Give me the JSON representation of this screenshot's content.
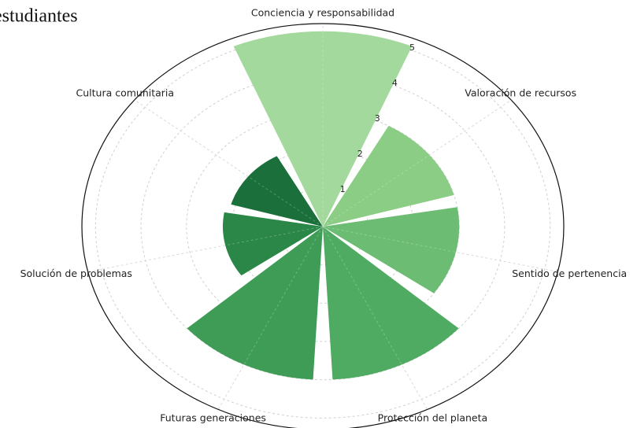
{
  "chart_data": {
    "type": "polar_bar",
    "title": "estudiantes",
    "categories": [
      "Conciencia y responsabilidad",
      "Valoración de recursos",
      "Sentido de pertenencia",
      "Protección del planeta",
      "Futuras generaciones",
      "Solución de problemas",
      "Cultura comunitaria"
    ],
    "values": [
      5.1,
      3.0,
      3.0,
      4.0,
      4.0,
      2.2,
      2.1
    ],
    "colors": [
      "#a3d99c",
      "#8bcd85",
      "#6cbd73",
      "#4fab61",
      "#3f9c56",
      "#2b8748",
      "#1b6f3a"
    ],
    "ylim": [
      0,
      5.3
    ],
    "yticks": [
      1,
      2,
      3,
      4,
      5
    ],
    "grid": true
  }
}
